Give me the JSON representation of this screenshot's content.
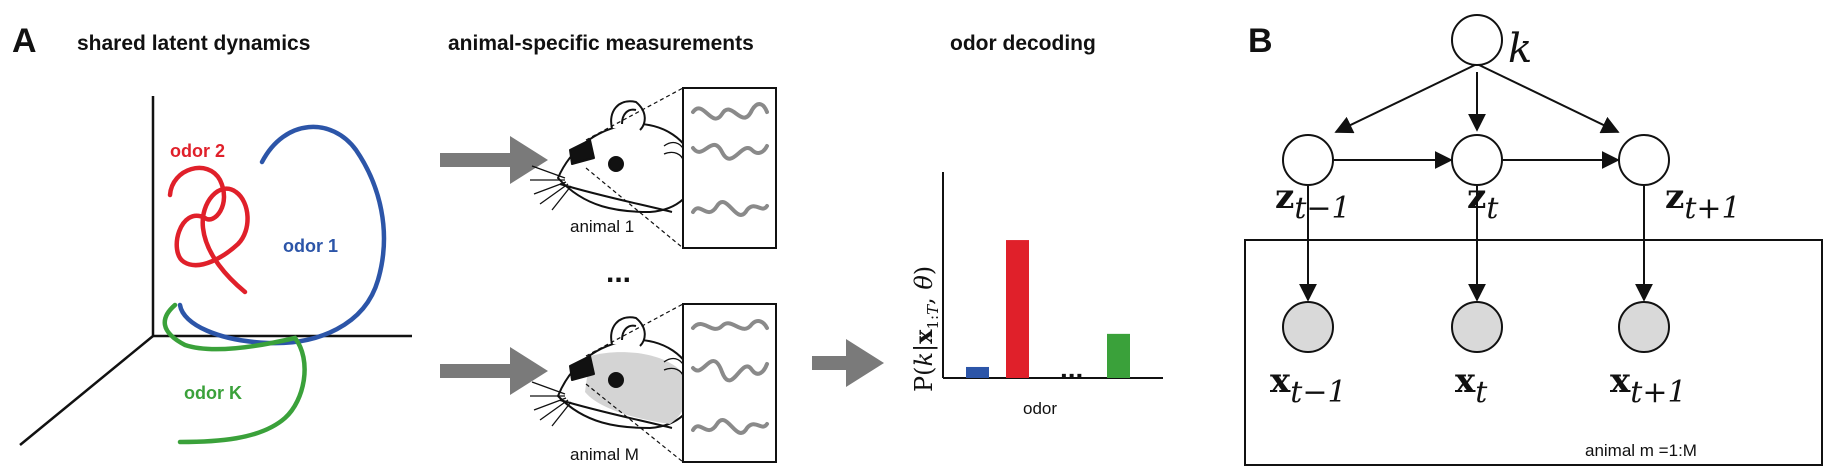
{
  "panel_a": {
    "letter": "A",
    "headings": {
      "latent": "shared latent dynamics",
      "measurements": "animal-specific measurements",
      "decoding": "odor decoding"
    },
    "odors": {
      "odor1": "odor 1",
      "odor2": "odor 2",
      "odorK": "odor K"
    },
    "animals": {
      "first": "animal 1",
      "last": "animal M",
      "ellipsis": "..."
    },
    "decoding": {
      "ylabel": "P(k|x1:T, θ)",
      "xlabel": "odor",
      "ellipsis": "..."
    }
  },
  "chart_data": {
    "type": "bar",
    "categories": [
      "odor 1",
      "odor 2",
      "odor K"
    ],
    "values": [
      0.08,
      1.0,
      0.32
    ],
    "colors": [
      "#2c55a8",
      "#e0202a",
      "#3aa13a"
    ],
    "title": "odor decoding",
    "xlabel": "odor",
    "ylabel": "P(k|x1:T, θ)",
    "ylim": [
      0,
      1.45
    ]
  },
  "panel_b": {
    "letter": "B",
    "k": "k",
    "z": {
      "base": "z",
      "prev": "t−1",
      "curr": "t",
      "next": "t+1"
    },
    "x": {
      "base": "x",
      "prev": "t−1",
      "curr": "t",
      "next": "t+1"
    },
    "plate_label": "animal  m =1:M"
  },
  "colors": {
    "odor1": "#2c55a8",
    "odor2": "#e0202a",
    "odorK": "#3aa13a",
    "arrow_gray": "#7a7a7a",
    "observed_fill": "#d9d9d9"
  }
}
